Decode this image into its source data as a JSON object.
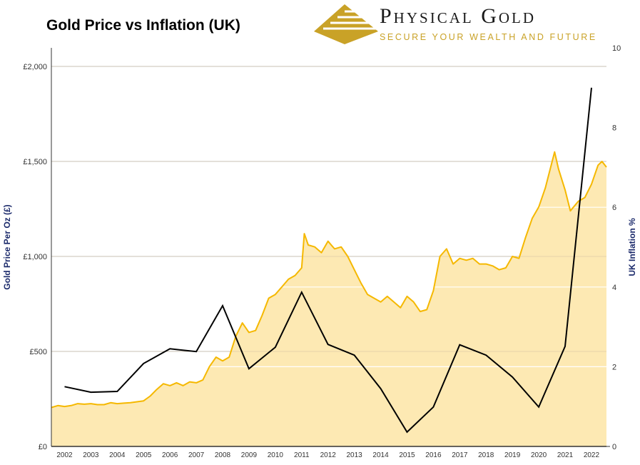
{
  "title": "Gold Price vs Inflation (UK)",
  "logo": {
    "brand": "Physical Gold",
    "tagline": "SECURE YOUR WEALTH AND FUTURE"
  },
  "colors": {
    "gold_line": "#f5b800",
    "gold_fill": "#fde9b3",
    "inflation_line": "#000000",
    "axis_label": "#1b2a6b"
  },
  "chart_data": {
    "type": "area+line",
    "title": "Gold Price vs Inflation (UK)",
    "y_left": {
      "label": "Gold Price Per Oz (£)",
      "range": [
        0,
        2000
      ],
      "ticks": [
        "£0",
        "£500",
        "£1,000",
        "£1,500",
        "£2,000"
      ],
      "tick_values": [
        0,
        500,
        1000,
        1500,
        2000
      ]
    },
    "y_right": {
      "label": "UK Inflation %",
      "range": [
        0,
        10
      ],
      "ticks": [
        "0",
        "2",
        "4",
        "6",
        "8",
        "10"
      ],
      "tick_values": [
        0,
        2,
        4,
        6,
        8,
        10
      ]
    },
    "x": {
      "ticks": [
        "2002",
        "2003",
        "2004",
        "2005",
        "2006",
        "2007",
        "2008",
        "2009",
        "2010",
        "2011",
        "2012",
        "2013",
        "2014",
        "2015",
        "2016",
        "2017",
        "2018",
        "2019",
        "2020",
        "2021",
        "2022"
      ],
      "range": [
        2001.5,
        2022.57
      ]
    },
    "grid": true,
    "gold_price": {
      "axis": "left",
      "x": [
        2001.5,
        2001.75,
        2002,
        2002.25,
        2002.5,
        2002.75,
        2003,
        2003.25,
        2003.5,
        2003.75,
        2004,
        2004.25,
        2004.5,
        2004.75,
        2005,
        2005.25,
        2005.5,
        2005.75,
        2006,
        2006.25,
        2006.5,
        2006.75,
        2007,
        2007.25,
        2007.5,
        2007.75,
        2008,
        2008.25,
        2008.5,
        2008.75,
        2009,
        2009.25,
        2009.5,
        2009.75,
        2010,
        2010.25,
        2010.5,
        2010.75,
        2011,
        2011.1,
        2011.25,
        2011.5,
        2011.75,
        2012,
        2012.25,
        2012.5,
        2012.75,
        2013,
        2013.25,
        2013.5,
        2013.75,
        2014,
        2014.25,
        2014.5,
        2014.75,
        2015,
        2015.25,
        2015.5,
        2015.75,
        2016,
        2016.25,
        2016.5,
        2016.75,
        2017,
        2017.25,
        2017.5,
        2017.75,
        2018,
        2018.25,
        2018.5,
        2018.75,
        2019,
        2019.25,
        2019.5,
        2019.75,
        2020,
        2020.25,
        2020.6,
        2020.75,
        2021,
        2021.2,
        2021.5,
        2021.75,
        2022,
        2022.25,
        2022.4,
        2022.57
      ],
      "values": [
        205,
        215,
        210,
        215,
        225,
        222,
        225,
        220,
        220,
        230,
        225,
        228,
        230,
        235,
        240,
        265,
        300,
        330,
        320,
        335,
        320,
        340,
        335,
        350,
        420,
        470,
        450,
        470,
        580,
        650,
        600,
        610,
        690,
        780,
        800,
        840,
        880,
        900,
        940,
        1120,
        1060,
        1050,
        1020,
        1080,
        1040,
        1050,
        1000,
        930,
        860,
        800,
        780,
        760,
        790,
        760,
        730,
        790,
        760,
        710,
        720,
        820,
        1000,
        1040,
        960,
        990,
        980,
        990,
        960,
        960,
        950,
        930,
        940,
        1000,
        990,
        1100,
        1200,
        1260,
        1360,
        1550,
        1460,
        1350,
        1240,
        1290,
        1310,
        1380,
        1480,
        1500,
        1470
      ]
    },
    "inflation": {
      "axis": "right",
      "x": [
        2002,
        2003,
        2004,
        2005,
        2006,
        2007,
        2008,
        2009,
        2010,
        2011,
        2012,
        2013,
        2014,
        2015,
        2016,
        2017,
        2018,
        2019,
        2020,
        2021,
        2022
      ],
      "values": [
        1.5,
        1.36,
        1.38,
        2.08,
        2.45,
        2.38,
        3.53,
        1.95,
        2.49,
        3.87,
        2.56,
        2.29,
        1.45,
        0.36,
        0.99,
        2.55,
        2.29,
        1.74,
        0.99,
        2.51,
        9.0
      ]
    }
  }
}
